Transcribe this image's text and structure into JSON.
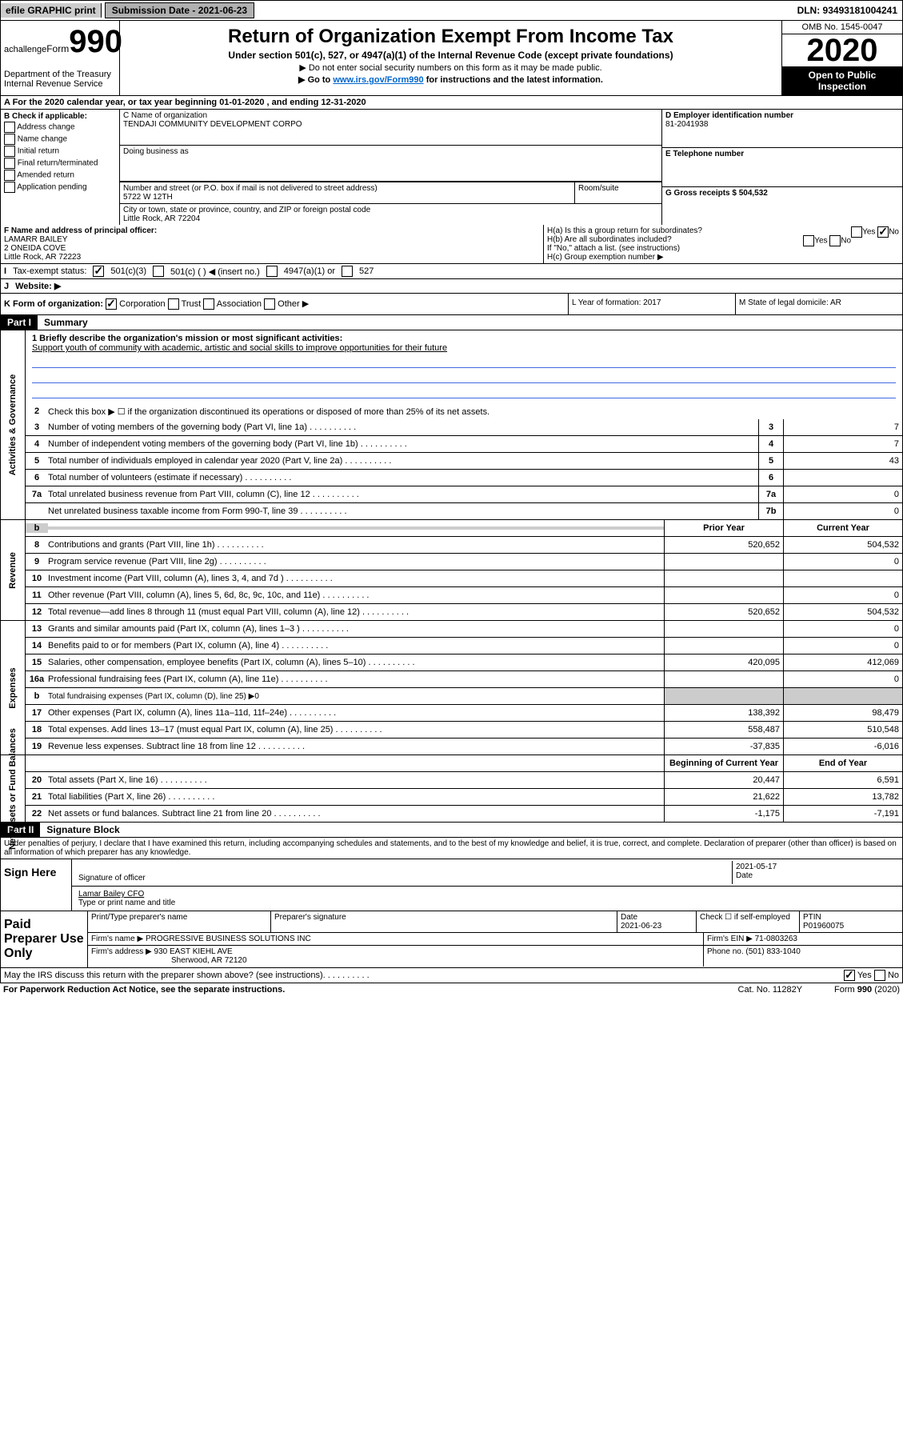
{
  "topbar": {
    "efile": "efile GRAPHIC print",
    "submission_label": "Submission Date - 2021-06-23",
    "dln": "DLN: 93493181004241"
  },
  "header": {
    "form_word": "Form",
    "form_num": "990",
    "dept": "Department of the Treasury\nInternal Revenue Service",
    "title": "Return of Organization Exempt From Income Tax",
    "subtitle": "Under section 501(c), 527, or 4947(a)(1) of the Internal Revenue Code (except private foundations)",
    "note1": "▶ Do not enter social security numbers on this form as it may be made public.",
    "note2_pre": "▶ Go to ",
    "note2_link": "www.irs.gov/Form990",
    "note2_post": " for instructions and the latest information.",
    "omb": "OMB No. 1545-0047",
    "year": "2020",
    "inspection": "Open to Public Inspection"
  },
  "rowA": "A For the 2020 calendar year, or tax year beginning 01-01-2020    , and ending 12-31-2020",
  "colB": {
    "label": "B Check if applicable:",
    "opts": [
      "Address change",
      "Name change",
      "Initial return",
      "Final return/terminated",
      "Amended return",
      "Application pending"
    ]
  },
  "colC": {
    "name_label": "C Name of organization",
    "name": "TENDAJI COMMUNITY DEVELOPMENT CORPO",
    "dba_label": "Doing business as",
    "addr_label": "Number and street (or P.O. box if mail is not delivered to street address)",
    "addr": "5722 W 12TH",
    "room_label": "Room/suite",
    "city_label": "City or town, state or province, country, and ZIP or foreign postal code",
    "city": "Little Rock, AR  72204"
  },
  "colD": {
    "label": "D Employer identification number",
    "value": "81-2041938"
  },
  "colE": {
    "label": "E Telephone number"
  },
  "colG": {
    "label": "G Gross receipts $ 504,532"
  },
  "cellF": {
    "label": "F  Name and address of principal officer:",
    "name": "LAMARR BAILEY",
    "addr1": "2 ONEIDA COVE",
    "addr2": "Little Rock, AR  72223"
  },
  "cellH": {
    "a": "H(a)  Is this a group return for subordinates?",
    "b": "H(b)  Are all subordinates included?",
    "b_note": "If \"No,\" attach a list. (see instructions)",
    "c": "H(c)  Group exemption number ▶",
    "yes": "Yes",
    "no": "No"
  },
  "rowI": {
    "label": "Tax-exempt status:",
    "opt1": "501(c)(3)",
    "opt2": "501(c) (  ) ◀ (insert no.)",
    "opt3": "4947(a)(1) or",
    "opt4": "527"
  },
  "rowJ": {
    "label": "Website: ▶"
  },
  "rowK": {
    "label": "K Form of organization:",
    "opts": [
      "Corporation",
      "Trust",
      "Association",
      "Other ▶"
    ]
  },
  "rowL": {
    "label": "L Year of formation: 2017"
  },
  "rowM": {
    "label": "M State of legal domicile: AR"
  },
  "partI": {
    "hdr": "Part I",
    "title": "Summary",
    "line1_label": "1  Briefly describe the organization's mission or most significant activities:",
    "line1_text": "Support youth of community with academic, artistic and social skills to improve opportunities for their future",
    "line2": "Check this box ▶ ☐  if the organization discontinued its operations or disposed of more than 25% of its net assets."
  },
  "sections": {
    "activities": "Activities & Governance",
    "revenue": "Revenue",
    "expenses": "Expenses",
    "netassets": "Net Assets or Fund Balances"
  },
  "activities_lines": [
    {
      "n": "3",
      "d": "Number of voting members of the governing body (Part VI, line 1a)",
      "box": "3",
      "v": "7"
    },
    {
      "n": "4",
      "d": "Number of independent voting members of the governing body (Part VI, line 1b)",
      "box": "4",
      "v": "7"
    },
    {
      "n": "5",
      "d": "Total number of individuals employed in calendar year 2020 (Part V, line 2a)",
      "box": "5",
      "v": "43"
    },
    {
      "n": "6",
      "d": "Total number of volunteers (estimate if necessary)",
      "box": "6",
      "v": ""
    },
    {
      "n": "7a",
      "d": "Total unrelated business revenue from Part VIII, column (C), line 12",
      "box": "7a",
      "v": "0"
    },
    {
      "n": "",
      "d": "Net unrelated business taxable income from Form 990-T, line 39",
      "box": "7b",
      "v": "0"
    }
  ],
  "col_headers": {
    "prior": "Prior Year",
    "current": "Current Year",
    "beg": "Beginning of Current Year",
    "end": "End of Year"
  },
  "revenue_lines": [
    {
      "n": "8",
      "d": "Contributions and grants (Part VIII, line 1h)",
      "p": "520,652",
      "c": "504,532"
    },
    {
      "n": "9",
      "d": "Program service revenue (Part VIII, line 2g)",
      "p": "",
      "c": "0"
    },
    {
      "n": "10",
      "d": "Investment income (Part VIII, column (A), lines 3, 4, and 7d )",
      "p": "",
      "c": ""
    },
    {
      "n": "11",
      "d": "Other revenue (Part VIII, column (A), lines 5, 6d, 8c, 9c, 10c, and 11e)",
      "p": "",
      "c": "0"
    },
    {
      "n": "12",
      "d": "Total revenue—add lines 8 through 11 (must equal Part VIII, column (A), line 12)",
      "p": "520,652",
      "c": "504,532"
    }
  ],
  "expense_lines": [
    {
      "n": "13",
      "d": "Grants and similar amounts paid (Part IX, column (A), lines 1–3 )",
      "p": "",
      "c": "0"
    },
    {
      "n": "14",
      "d": "Benefits paid to or for members (Part IX, column (A), line 4)",
      "p": "",
      "c": "0"
    },
    {
      "n": "15",
      "d": "Salaries, other compensation, employee benefits (Part IX, column (A), lines 5–10)",
      "p": "420,095",
      "c": "412,069"
    },
    {
      "n": "16a",
      "d": "Professional fundraising fees (Part IX, column (A), line 11e)",
      "p": "",
      "c": "0"
    },
    {
      "n": "b",
      "d": "Total fundraising expenses (Part IX, column (D), line 25) ▶0",
      "p": null,
      "c": null
    },
    {
      "n": "17",
      "d": "Other expenses (Part IX, column (A), lines 11a–11d, 11f–24e)",
      "p": "138,392",
      "c": "98,479"
    },
    {
      "n": "18",
      "d": "Total expenses. Add lines 13–17 (must equal Part IX, column (A), line 25)",
      "p": "558,487",
      "c": "510,548"
    },
    {
      "n": "19",
      "d": "Revenue less expenses. Subtract line 18 from line 12",
      "p": "-37,835",
      "c": "-6,016"
    }
  ],
  "netassets_lines": [
    {
      "n": "20",
      "d": "Total assets (Part X, line 16)",
      "p": "20,447",
      "c": "6,591"
    },
    {
      "n": "21",
      "d": "Total liabilities (Part X, line 26)",
      "p": "21,622",
      "c": "13,782"
    },
    {
      "n": "22",
      "d": "Net assets or fund balances. Subtract line 21 from line 20",
      "p": "-1,175",
      "c": "-7,191"
    }
  ],
  "partII": {
    "hdr": "Part II",
    "title": "Signature Block",
    "declaration": "Under penalties of perjury, I declare that I have examined this return, including accompanying schedules and statements, and to the best of my knowledge and belief, it is true, correct, and complete. Declaration of preparer (other than officer) is based on all information of which preparer has any knowledge."
  },
  "sign": {
    "label": "Sign Here",
    "sig_officer": "Signature of officer",
    "date": "2021-05-17",
    "date_label": "Date",
    "name": "Lamar Bailey CFO",
    "name_label": "Type or print name and title"
  },
  "paid": {
    "label": "Paid Preparer Use Only",
    "h_name": "Print/Type preparer's name",
    "h_sig": "Preparer's signature",
    "h_date": "Date",
    "date": "2021-06-23",
    "check": "Check ☐ if self-employed",
    "ptin_label": "PTIN",
    "ptin": "P01960075",
    "firm_name_label": "Firm's name    ▶",
    "firm_name": "PROGRESSIVE BUSINESS SOLUTIONS INC",
    "firm_ein": "Firm's EIN ▶ 71-0803263",
    "firm_addr_label": "Firm's address ▶",
    "firm_addr1": "930 EAST KIEHL AVE",
    "firm_addr2": "Sherwood, AR  72120",
    "phone": "Phone no. (501) 833-1040"
  },
  "footer": {
    "discuss": "May the IRS discuss this return with the preparer shown above? (see instructions)",
    "yes": "Yes",
    "no": "No",
    "paperwork": "For Paperwork Reduction Act Notice, see the separate instructions.",
    "cat": "Cat. No. 11282Y",
    "form": "Form 990 (2020)"
  }
}
